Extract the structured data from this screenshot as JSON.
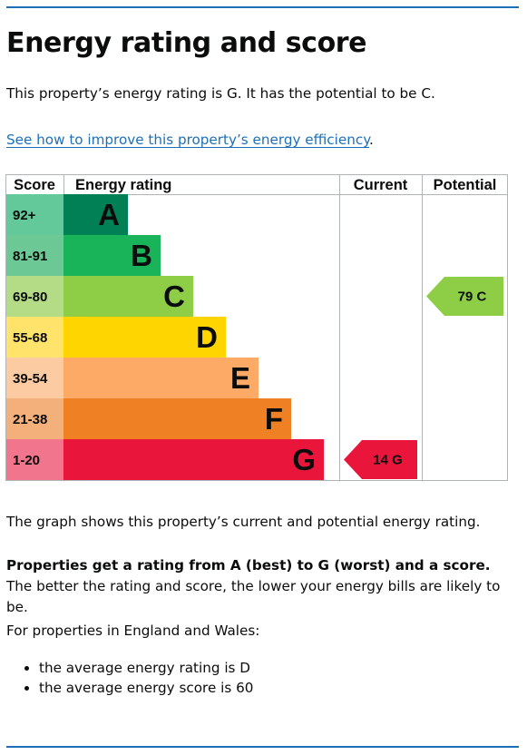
{
  "page": {
    "title": "Energy rating and score",
    "intro": "This property’s energy rating is G. It has the potential to be C.",
    "improve_link": "See how to improve this property’s energy efficiency",
    "improve_link_suffix": ".",
    "graph_caption": "The graph shows this property’s current and potential energy rating.",
    "ratings_bold": "Properties get a rating from A (best) to G (worst) and a score.",
    "ratings_rest": " The better the rating and score, the lower your energy bills are likely to be.",
    "regional_intro": "For properties in England and Wales:",
    "averages": [
      "the average energy rating is D",
      "the average energy score is 60"
    ]
  },
  "chart_data": {
    "type": "bar",
    "title": "",
    "columns": [
      "Score",
      "Energy rating",
      "Current",
      "Potential"
    ],
    "bands": [
      {
        "score_range": "92+",
        "rating": "A",
        "color": "#008054",
        "range_color": "#63c99b"
      },
      {
        "score_range": "81-91",
        "rating": "B",
        "color": "#19b459",
        "range_color": "#6cc894"
      },
      {
        "score_range": "69-80",
        "rating": "C",
        "color": "#8dce46",
        "range_color": "#b4dc87"
      },
      {
        "score_range": "55-68",
        "rating": "D",
        "color": "#ffd500",
        "range_color": "#ffe36a"
      },
      {
        "score_range": "39-54",
        "rating": "E",
        "color": "#fcaa65",
        "range_color": "#fccba2"
      },
      {
        "score_range": "21-38",
        "rating": "F",
        "color": "#ef8023",
        "range_color": "#f4b07a"
      },
      {
        "score_range": "1-20",
        "rating": "G",
        "color": "#e9153b",
        "range_color": "#f1758c"
      }
    ],
    "current": {
      "score": 14,
      "rating": "G",
      "label": "14  G"
    },
    "potential": {
      "score": 79,
      "rating": "C",
      "label": "79  C"
    }
  }
}
